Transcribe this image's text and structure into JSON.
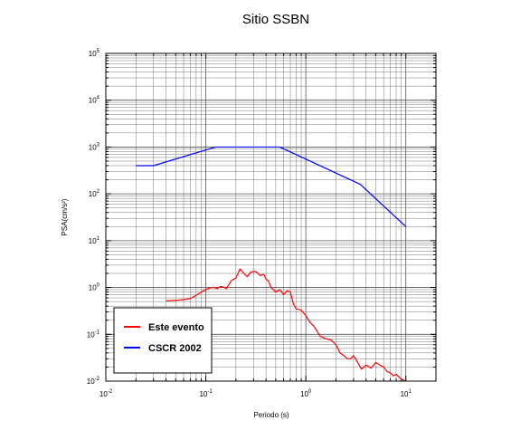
{
  "chart_data": {
    "type": "line",
    "title": "Sitio SSBN",
    "xlabel": "Periodo (s)",
    "ylabel": "PSA(cm/s²)",
    "xscale": "log",
    "yscale": "log",
    "xlim": [
      0.01,
      20
    ],
    "ylim": [
      0.01,
      100000
    ],
    "grid": true,
    "x_ticks": [
      {
        "base": "10",
        "exp": "-2",
        "value": 0.01
      },
      {
        "base": "10",
        "exp": "-1",
        "value": 0.1
      },
      {
        "base": "10",
        "exp": "0",
        "value": 1
      },
      {
        "base": "10",
        "exp": "1",
        "value": 10
      }
    ],
    "y_ticks": [
      {
        "base": "10",
        "exp": "-2",
        "value": 0.01
      },
      {
        "base": "10",
        "exp": "-1",
        "value": 0.1
      },
      {
        "base": "10",
        "exp": "0",
        "value": 1
      },
      {
        "base": "10",
        "exp": "1",
        "value": 10
      },
      {
        "base": "10",
        "exp": "2",
        "value": 100
      },
      {
        "base": "10",
        "exp": "3",
        "value": 1000
      },
      {
        "base": "10",
        "exp": "4",
        "value": 10000
      },
      {
        "base": "10",
        "exp": "5",
        "value": 100000
      }
    ],
    "legend_position": "bottom-left",
    "series": [
      {
        "name": "Este evento",
        "color": "#ff0000",
        "x": [
          0.04,
          0.05,
          0.06,
          0.07,
          0.08,
          0.09,
          0.1,
          0.11,
          0.12,
          0.13,
          0.14,
          0.15,
          0.16,
          0.17,
          0.18,
          0.2,
          0.22,
          0.24,
          0.26,
          0.28,
          0.3,
          0.32,
          0.35,
          0.38,
          0.4,
          0.42,
          0.45,
          0.5,
          0.55,
          0.6,
          0.65,
          0.7,
          0.75,
          0.8,
          0.9,
          1.0,
          1.1,
          1.2,
          1.4,
          1.6,
          1.8,
          2.0,
          2.2,
          2.4,
          2.6,
          2.8,
          3.0,
          3.3,
          3.6,
          4.0,
          4.5,
          5.0,
          5.5,
          6.0,
          6.5,
          7.0,
          7.5,
          8.0,
          9.0,
          10.0
        ],
        "y": [
          0.52,
          0.53,
          0.55,
          0.58,
          0.68,
          0.8,
          0.9,
          0.98,
          1.0,
          0.95,
          1.05,
          1.02,
          0.95,
          1.15,
          1.4,
          1.6,
          2.5,
          2.0,
          1.7,
          2.1,
          2.2,
          2.15,
          1.8,
          1.9,
          1.5,
          1.4,
          1.0,
          0.8,
          0.9,
          0.7,
          0.85,
          0.8,
          0.45,
          0.35,
          0.33,
          0.25,
          0.18,
          0.15,
          0.09,
          0.08,
          0.075,
          0.06,
          0.04,
          0.035,
          0.03,
          0.03,
          0.035,
          0.025,
          0.018,
          0.022,
          0.019,
          0.025,
          0.022,
          0.02,
          0.016,
          0.015,
          0.013,
          0.014,
          0.011,
          0.01
        ]
      },
      {
        "name": "CSCR 2002",
        "color": "#0000ff",
        "x": [
          0.02,
          0.03,
          0.125,
          0.5,
          0.55,
          3.5,
          10
        ],
        "y": [
          400,
          400,
          1000,
          1000,
          1000,
          160,
          20
        ]
      }
    ]
  }
}
